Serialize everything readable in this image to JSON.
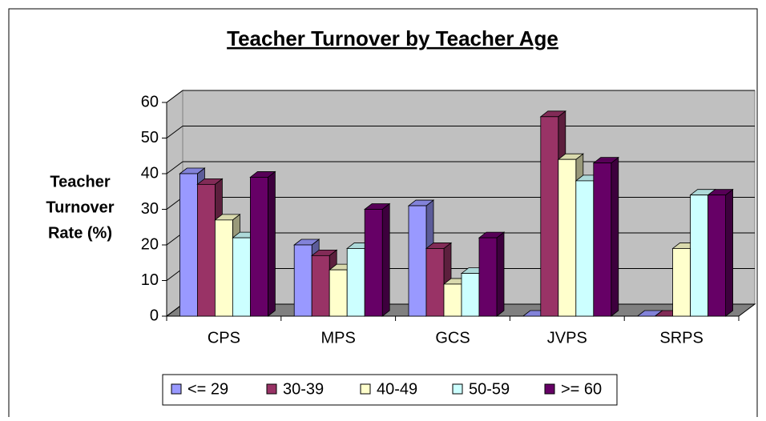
{
  "chart_data": {
    "type": "bar3d",
    "title": "Teacher Turnover by Teacher Age",
    "y_label": [
      "Teacher",
      "Turnover",
      "Rate (%)"
    ],
    "categories": [
      "CPS",
      "MPS",
      "GCS",
      "JVPS",
      "SRPS"
    ],
    "series": [
      {
        "name": "<= 29",
        "color": "#9999ff",
        "values": [
          40,
          20,
          31,
          0,
          0
        ]
      },
      {
        "name": "30-39",
        "color": "#993366",
        "values": [
          37,
          17,
          19,
          56,
          0
        ]
      },
      {
        "name": "40-49",
        "color": "#ffffcc",
        "values": [
          27,
          13,
          9,
          44,
          19
        ]
      },
      {
        "name": "50-59",
        "color": "#ccffff",
        "values": [
          22,
          19,
          12,
          38,
          34
        ]
      },
      {
        "name": ">= 60",
        "color": "#660066",
        "values": [
          39,
          30,
          22,
          43,
          34
        ]
      }
    ],
    "ylim": [
      0,
      60
    ],
    "yticks": [
      0,
      10,
      20,
      30,
      40,
      50,
      60
    ],
    "grid": true,
    "legend": "bottom"
  }
}
